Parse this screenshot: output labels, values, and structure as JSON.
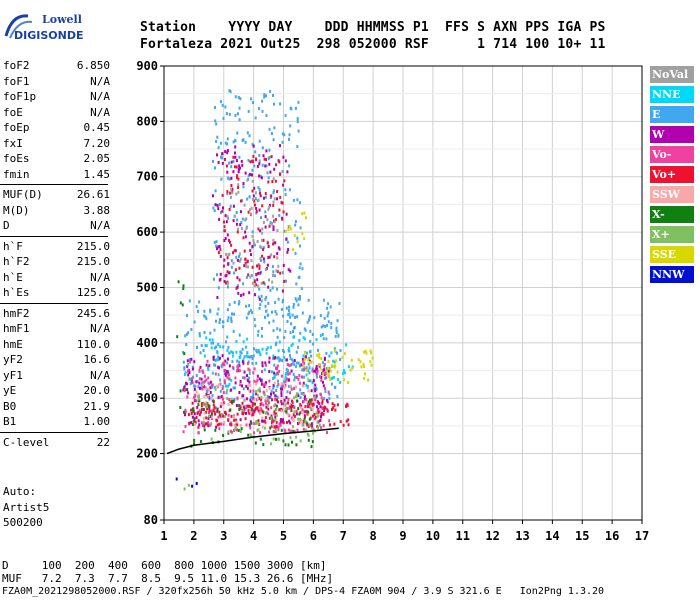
{
  "logo": {
    "brand": "Lowell",
    "name": "DIGISONDE"
  },
  "header": {
    "labels": "Station    YYYY DAY    DDD HHMMSS P1  FFS S AXN PPS IGA PS",
    "values": "Fortaleza 2021 Out25  298 052000 RSF      1 714 100 10+ 11"
  },
  "params": {
    "group1": [
      {
        "label": "foF2",
        "value": "6.850"
      },
      {
        "label": "foF1",
        "value": "N/A"
      },
      {
        "label": "foF1p",
        "value": "N/A"
      },
      {
        "label": "foE",
        "value": "N/A"
      },
      {
        "label": "foEp",
        "value": "0.45"
      },
      {
        "label": "fxI",
        "value": "7.20"
      },
      {
        "label": "foEs",
        "value": "2.05"
      },
      {
        "label": "fmin",
        "value": "1.45"
      }
    ],
    "group2": [
      {
        "label": "MUF(D)",
        "value": "26.61"
      },
      {
        "label": "M(D)",
        "value": "3.88"
      },
      {
        "label": "D",
        "value": "N/A"
      }
    ],
    "group3": [
      {
        "label": "h`F",
        "value": "215.0"
      },
      {
        "label": "h`F2",
        "value": "215.0"
      },
      {
        "label": "h`E",
        "value": "N/A"
      },
      {
        "label": "h`Es",
        "value": "125.0"
      }
    ],
    "group4": [
      {
        "label": "hmF2",
        "value": "245.6"
      },
      {
        "label": "hmF1",
        "value": "N/A"
      },
      {
        "label": "hmE",
        "value": "110.0"
      },
      {
        "label": "yF2",
        "value": "16.6"
      },
      {
        "label": "yF1",
        "value": "N/A"
      },
      {
        "label": "yE",
        "value": "20.0"
      },
      {
        "label": "B0",
        "value": "21.9"
      },
      {
        "label": "B1",
        "value": "1.00"
      }
    ],
    "group5": [
      {
        "label": "C-level",
        "value": "22"
      }
    ]
  },
  "auto": {
    "line1": "Auto:",
    "line2": "Artist5",
    "line3": "500200"
  },
  "legend": [
    {
      "label": "NoVal",
      "color": "#a0a0a0"
    },
    {
      "label": "NNE",
      "color": "#00d8f8"
    },
    {
      "label": "E",
      "color": "#40a8f0"
    },
    {
      "label": "W",
      "color": "#b000b0"
    },
    {
      "label": "Vo-",
      "color": "#f040a0"
    },
    {
      "label": "Vo+",
      "color": "#f01030"
    },
    {
      "label": "SSW",
      "color": "#f8a8a8"
    },
    {
      "label": "X-",
      "color": "#108010"
    },
    {
      "label": "X+",
      "color": "#80c060"
    },
    {
      "label": "SSE",
      "color": "#d8d800"
    },
    {
      "label": "NNW",
      "color": "#0010d0"
    }
  ],
  "chart_data": {
    "type": "scatter",
    "xlabel": "",
    "ylabel": "",
    "xlim": [
      1,
      17
    ],
    "ylim": [
      80,
      900
    ],
    "x_ticks": [
      1,
      2,
      3,
      4,
      5,
      6,
      7,
      8,
      9,
      10,
      11,
      12,
      13,
      14,
      15,
      16,
      17
    ],
    "y_ticks": [
      80,
      200,
      300,
      400,
      500,
      600,
      700,
      800,
      900
    ],
    "grid": true,
    "profile": {
      "name": "",
      "points": [
        [
          1.1,
          200
        ],
        [
          1.5,
          208
        ],
        [
          2,
          215
        ],
        [
          3,
          222
        ],
        [
          4,
          230
        ],
        [
          5,
          236
        ],
        [
          6,
          241
        ],
        [
          6.85,
          245.6
        ]
      ]
    },
    "echo_regions": [
      {
        "series": "E",
        "xmin": 1.6,
        "xmax": 6.9,
        "ymin": 300,
        "ymax": 480,
        "weight": 2
      },
      {
        "series": "NNE",
        "xmin": 2.2,
        "xmax": 7.4,
        "ymin": 320,
        "ymax": 420,
        "weight": 1
      },
      {
        "series": "W",
        "xmin": 1.6,
        "xmax": 6.5,
        "ymin": 250,
        "ymax": 380,
        "weight": 2
      },
      {
        "series": "Vo-",
        "xmin": 1.6,
        "xmax": 6.5,
        "ymin": 240,
        "ymax": 370,
        "weight": 2
      },
      {
        "series": "Vo+",
        "xmin": 1.8,
        "xmax": 7.2,
        "ymin": 250,
        "ymax": 300,
        "weight": 3
      },
      {
        "series": "SSW",
        "xmin": 2.0,
        "xmax": 6.0,
        "ymin": 250,
        "ymax": 330,
        "weight": 1
      },
      {
        "series": "X-",
        "xmin": 1.6,
        "xmax": 6.0,
        "ymin": 215,
        "ymax": 300,
        "weight": 1
      },
      {
        "series": "X+",
        "xmin": 2.0,
        "xmax": 6.2,
        "ymin": 220,
        "ymax": 320,
        "weight": 1
      },
      {
        "series": "SSE",
        "xmin": 5.6,
        "xmax": 8.0,
        "ymin": 330,
        "ymax": 390,
        "weight": 2
      },
      {
        "series": "E",
        "xmin": 2.6,
        "xmax": 5.6,
        "ymin": 480,
        "ymax": 860,
        "weight": 1
      },
      {
        "series": "W",
        "xmin": 2.6,
        "xmax": 5.2,
        "ymin": 480,
        "ymax": 760,
        "weight": 1
      },
      {
        "series": "Vo+",
        "xmin": 2.8,
        "xmax": 5.0,
        "ymin": 500,
        "ymax": 740,
        "weight": 1
      },
      {
        "series": "NoVal",
        "xmin": 3.0,
        "xmax": 4.8,
        "ymin": 500,
        "ymax": 700,
        "weight": 1
      },
      {
        "series": "SSE",
        "xmin": 5.0,
        "xmax": 5.8,
        "ymin": 560,
        "ymax": 640,
        "weight": 1
      },
      {
        "series": "NNW",
        "xmin": 1.3,
        "xmax": 2.1,
        "ymin": 140,
        "ymax": 160,
        "weight": 1
      },
      {
        "series": "X+",
        "xmin": 1.6,
        "xmax": 2.9,
        "ymin": 138,
        "ymax": 146,
        "weight": 1
      },
      {
        "series": "X-",
        "xmin": 1.4,
        "xmax": 2.0,
        "ymin": 270,
        "ymax": 520,
        "weight": 0.4
      },
      {
        "series": "NNE",
        "xmin": 1.5,
        "xmax": 2.0,
        "ymin": 320,
        "ymax": 390,
        "weight": 0.4
      }
    ]
  },
  "footer": {
    "line1": "D     100  200  400  600  800 1000 1500 3000 [km]",
    "line2": "MUF   7.2  7.3  7.7  8.5  9.5 11.0 15.3 26.6 [MHz]",
    "line3": "FZA0M_2021298052000.RSF / 320fx256h 50 kHz 5.0 km / DPS-4 FZA0M 904 / 3.9 S 321.6 E   Ion2Png 1.3.20"
  }
}
